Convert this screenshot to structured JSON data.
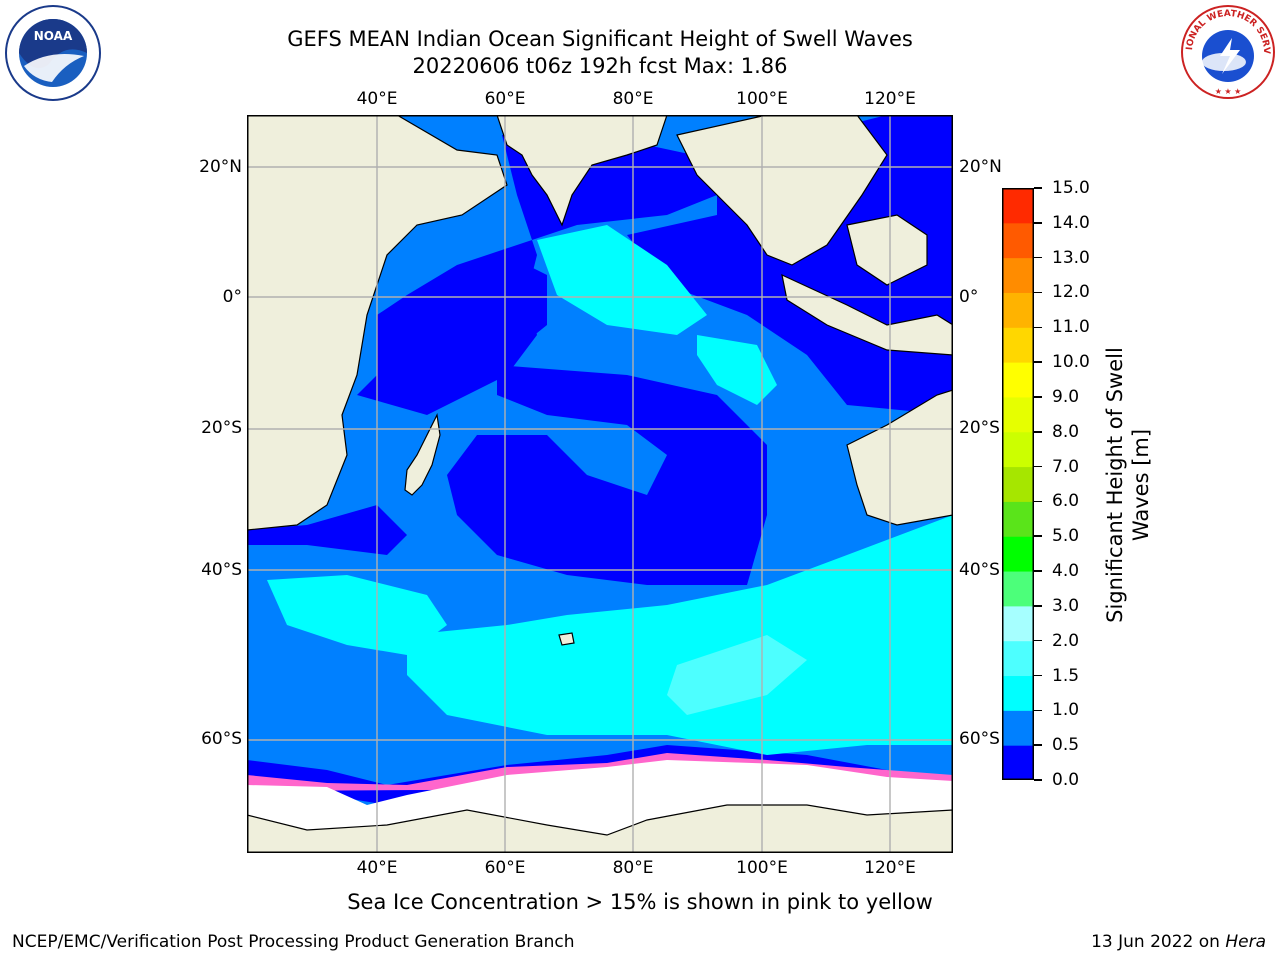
{
  "title_line1": "GEFS MEAN Indian Ocean Significant Height of Swell Waves",
  "title_line2": "20220606 t06z 192h fcst   Max: 1.86",
  "lon_labels": [
    "40°E",
    "60°E",
    "80°E",
    "100°E",
    "120°E"
  ],
  "lat_labels": [
    "20°N",
    "0°",
    "20°S",
    "40°S",
    "60°S"
  ],
  "colorbar": {
    "label_line1": "Significant Height of Swell",
    "label_line2": "Waves [m]",
    "ticks": [
      "0.0",
      "0.5",
      "1.0",
      "1.5",
      "2.0",
      "3.0",
      "4.0",
      "5.0",
      "6.0",
      "7.0",
      "8.0",
      "9.0",
      "10.0",
      "11.0",
      "12.0",
      "13.0",
      "14.0",
      "15.0"
    ],
    "colors": [
      "#0000ff",
      "#0080ff",
      "#00ffff",
      "#4dffff",
      "#a6ffff",
      "#4cff7a",
      "#00ff00",
      "#5ae41a",
      "#a6e600",
      "#ccff00",
      "#e6ff00",
      "#ffff00",
      "#ffd700",
      "#ffb300",
      "#ff8c00",
      "#ff5a00",
      "#ff2a00"
    ]
  },
  "map_colors": {
    "land": "#efefdc",
    "ice": "#ffffff",
    "grid": "#b0b0b0",
    "ice_edge": "#ff66cc"
  },
  "footer_note": "Sea Ice Concentration > 15% is shown in pink to yellow",
  "footer_left": "NCEP/EMC/Verification Post Processing Product Generation Branch",
  "footer_right_date": "13 Jun 2022 on ",
  "footer_right_host": "Hera",
  "logos": {
    "left": "NOAA",
    "right": "NATIONAL WEATHER SERVICE"
  }
}
